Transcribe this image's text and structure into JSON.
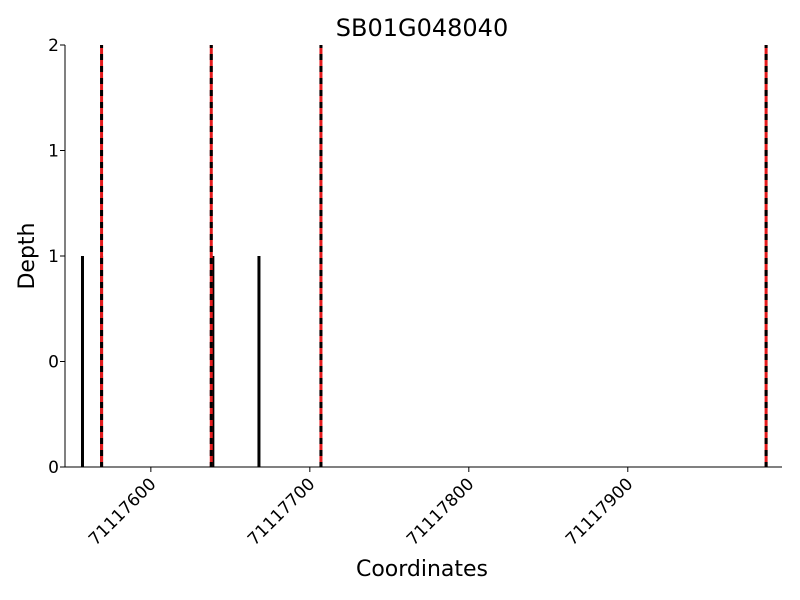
{
  "chart_data": {
    "type": "bar",
    "title": "SB01G048040",
    "xlabel": "Coordinates",
    "ylabel": "Depth",
    "x": [
      71117557,
      71117569,
      71117639,
      71117668
    ],
    "values": [
      1,
      1,
      1,
      1
    ],
    "color": "#000000",
    "vlines": [
      71117569,
      71117638,
      71117707,
      71117987
    ],
    "vline_color": "#e41a1c",
    "vline_dash_color": "#000000",
    "xlim": [
      71117546,
      71117997
    ],
    "ylim": [
      0,
      2
    ],
    "xticks": [
      71117600,
      71117700,
      71117800,
      71117900
    ],
    "yticks": [
      {
        "value": 0,
        "label": "0"
      },
      {
        "value": 0.5,
        "label": "0"
      },
      {
        "value": 1,
        "label": "1"
      },
      {
        "value": 1.5,
        "label": "1"
      },
      {
        "value": 2,
        "label": "2"
      }
    ]
  }
}
